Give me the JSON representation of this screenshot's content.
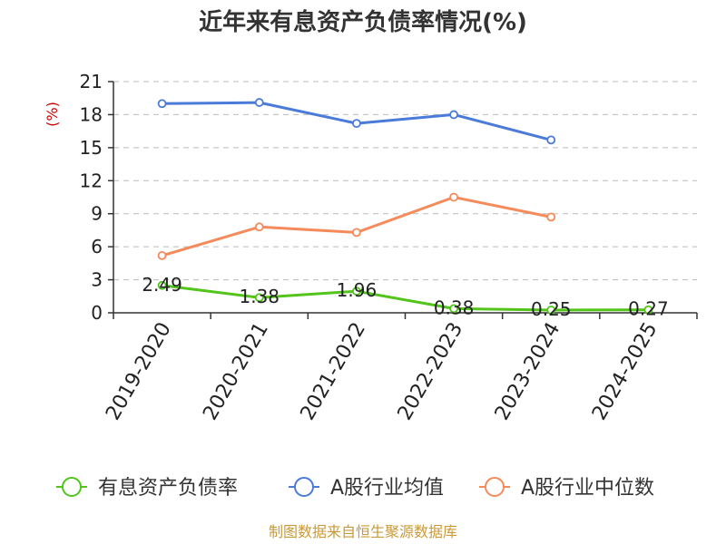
{
  "chart_data": {
    "type": "line",
    "title": "近年来有息资产负债率情况(%)",
    "ylabel": "(%)",
    "xlabel": "",
    "categories": [
      "2019-2020",
      "2020-2021",
      "2021-2022",
      "2022-2023",
      "2023-2024",
      "2024-2025"
    ],
    "ylim": [
      0,
      21
    ],
    "yticks": [
      0,
      3,
      6,
      9,
      12,
      15,
      18,
      21
    ],
    "grid": true,
    "legend_position": "bottom",
    "series": [
      {
        "name": "有息资产负债率",
        "color": "#52c41a",
        "values": [
          2.49,
          1.38,
          1.96,
          0.38,
          0.25,
          0.27
        ],
        "labels": [
          "2.49",
          "1.38",
          "1.96",
          "0.38",
          "0.25",
          "0.27"
        ]
      },
      {
        "name": "A股行业均值",
        "color": "#4a7bd9",
        "values": [
          19.0,
          19.1,
          17.2,
          18.0,
          15.7,
          null
        ]
      },
      {
        "name": "A股行业中位数",
        "color": "#f58a5a",
        "values": [
          5.2,
          7.8,
          7.3,
          10.5,
          8.7,
          null
        ]
      }
    ]
  },
  "source": "制图数据来自恒生聚源数据库"
}
